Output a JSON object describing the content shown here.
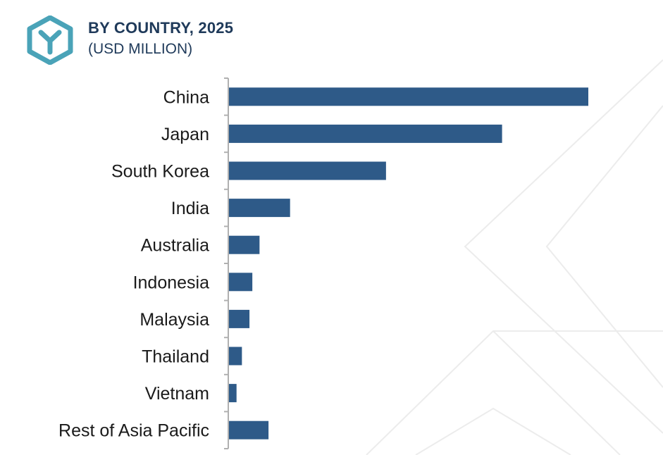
{
  "header": {
    "title": "BY COUNTRY, 2025",
    "subtitle": "(USD MILLION)",
    "logo_icon": "hexagon-y-logo-icon"
  },
  "colors": {
    "bar": "#2e5a88",
    "title": "#1f3a5a",
    "logo": "#4aa3b8",
    "axis": "#b0b0b0"
  },
  "chart_data": {
    "type": "bar",
    "orientation": "horizontal",
    "title": "BY COUNTRY, 2025",
    "subtitle": "(USD MILLION)",
    "categories": [
      "China",
      "Japan",
      "South Korea",
      "India",
      "Australia",
      "Indonesia",
      "Malaysia",
      "Thailand",
      "Vietnam",
      "Rest of Asia Pacific"
    ],
    "values": [
      100,
      76,
      43.7,
      17,
      8.5,
      6.5,
      5.7,
      3.6,
      2.1,
      11
    ],
    "xlim": [
      0,
      100
    ],
    "grid": false,
    "legend": "none"
  }
}
